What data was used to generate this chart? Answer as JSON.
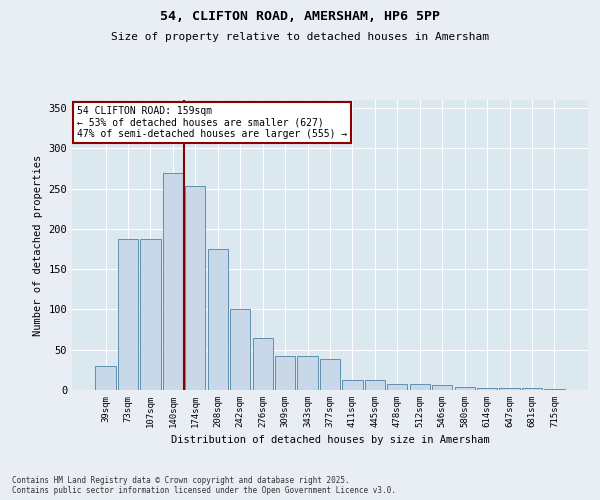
{
  "title1": "54, CLIFTON ROAD, AMERSHAM, HP6 5PP",
  "title2": "Size of property relative to detached houses in Amersham",
  "xlabel": "Distribution of detached houses by size in Amersham",
  "ylabel": "Number of detached properties",
  "categories": [
    "39sqm",
    "73sqm",
    "107sqm",
    "140sqm",
    "174sqm",
    "208sqm",
    "242sqm",
    "276sqm",
    "309sqm",
    "343sqm",
    "377sqm",
    "411sqm",
    "445sqm",
    "478sqm",
    "512sqm",
    "546sqm",
    "580sqm",
    "614sqm",
    "647sqm",
    "681sqm",
    "715sqm"
  ],
  "values": [
    30,
    188,
    188,
    270,
    253,
    175,
    100,
    65,
    42,
    42,
    38,
    13,
    13,
    8,
    7,
    6,
    4,
    3,
    3,
    2,
    1
  ],
  "bar_color": "#c8d8e8",
  "bar_edge_color": "#6090b0",
  "vline_color": "#880000",
  "annotation_text": "54 CLIFTON ROAD: 159sqm\n← 53% of detached houses are smaller (627)\n47% of semi-detached houses are larger (555) →",
  "annotation_box_color": "#ffffff",
  "annotation_box_edge": "#880000",
  "bg_color": "#e8eef4",
  "plot_bg_color": "#dce8f0",
  "grid_color": "#ffffff",
  "footnote": "Contains HM Land Registry data © Crown copyright and database right 2025.\nContains public sector information licensed under the Open Government Licence v3.0.",
  "ylim": [
    0,
    360
  ],
  "yticks": [
    0,
    50,
    100,
    150,
    200,
    250,
    300,
    350
  ]
}
